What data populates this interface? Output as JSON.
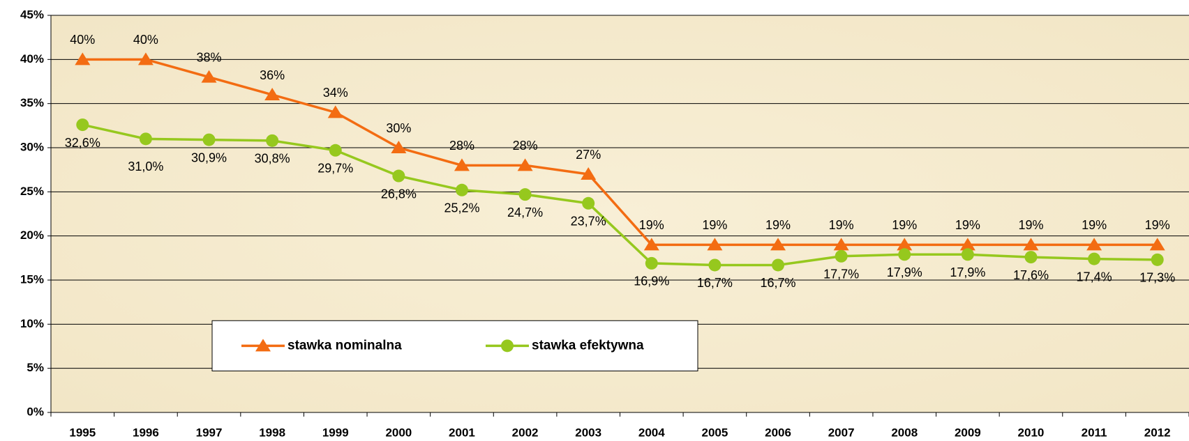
{
  "chart_data": {
    "type": "line",
    "categories": [
      "1995",
      "1996",
      "1997",
      "1998",
      "1999",
      "2000",
      "2001",
      "2002",
      "2003",
      "2004",
      "2005",
      "2006",
      "2007",
      "2008",
      "2009",
      "2010",
      "2011",
      "2012"
    ],
    "series": [
      {
        "name": "stawka nominalna",
        "color": "#f36c12",
        "values": [
          40,
          40,
          38,
          36,
          34,
          30,
          28,
          28,
          27,
          19,
          19,
          19,
          19,
          19,
          19,
          19,
          19,
          19
        ],
        "value_labels": [
          "40%",
          "40%",
          "38%",
          "36%",
          "34%",
          "30%",
          "28%",
          "28%",
          "27%",
          "19%",
          "19%",
          "19%",
          "19%",
          "19%",
          "19%",
          "19%",
          "19%",
          "19%"
        ]
      },
      {
        "name": "stawka efektywna",
        "color": "#96c81e",
        "values": [
          32.6,
          31.0,
          30.9,
          30.8,
          29.7,
          26.8,
          25.2,
          24.7,
          23.7,
          16.9,
          16.7,
          16.7,
          17.7,
          17.9,
          17.9,
          17.6,
          17.4,
          17.3
        ],
        "value_labels": [
          "32,6%",
          "31,0%",
          "30,9%",
          "30,8%",
          "29,7%",
          "26,8%",
          "25,2%",
          "24,7%",
          "23,7%",
          "16,9%",
          "16,7%",
          "16,7%",
          "17,7%",
          "17,9%",
          "17,9%",
          "17,6%",
          "17,4%",
          "17,3%"
        ]
      }
    ],
    "ylim": [
      0,
      45
    ],
    "yticks": [
      {
        "value": 0,
        "label": "0%"
      },
      {
        "value": 5,
        "label": "5%"
      },
      {
        "value": 10,
        "label": "10%"
      },
      {
        "value": 15,
        "label": "15%"
      },
      {
        "value": 20,
        "label": "20%"
      },
      {
        "value": 25,
        "label": "25%"
      },
      {
        "value": 30,
        "label": "30%"
      },
      {
        "value": 35,
        "label": "35%"
      },
      {
        "value": 40,
        "label": "40%"
      },
      {
        "value": 45,
        "label": "45%"
      }
    ],
    "grid": true,
    "legend": "bottom-left"
  }
}
